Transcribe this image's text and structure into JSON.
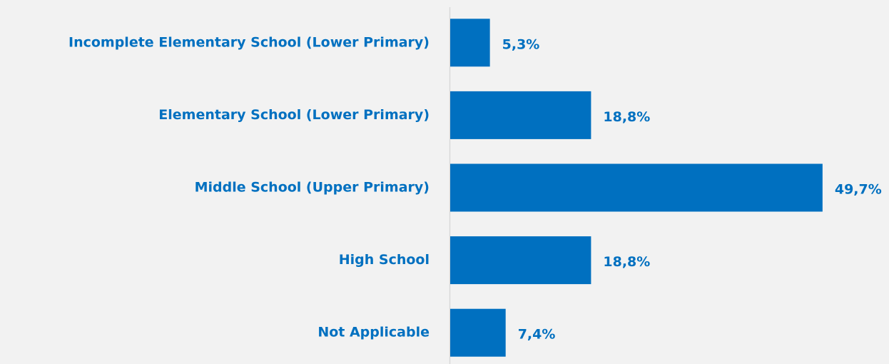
{
  "chart_data": {
    "type": "barh",
    "categories": [
      "Incomplete Elementary School (Lower Primary)",
      "Elementary School (Lower Primary)",
      "Middle School (Upper Primary)",
      "High School",
      "Not Applicable"
    ],
    "values": [
      5.3,
      18.8,
      49.7,
      18.8,
      7.4
    ],
    "value_labels": [
      "5,3%",
      "18,8%",
      "49,7%",
      "18,8%",
      "7,4%"
    ],
    "color": "#0070c0"
  }
}
